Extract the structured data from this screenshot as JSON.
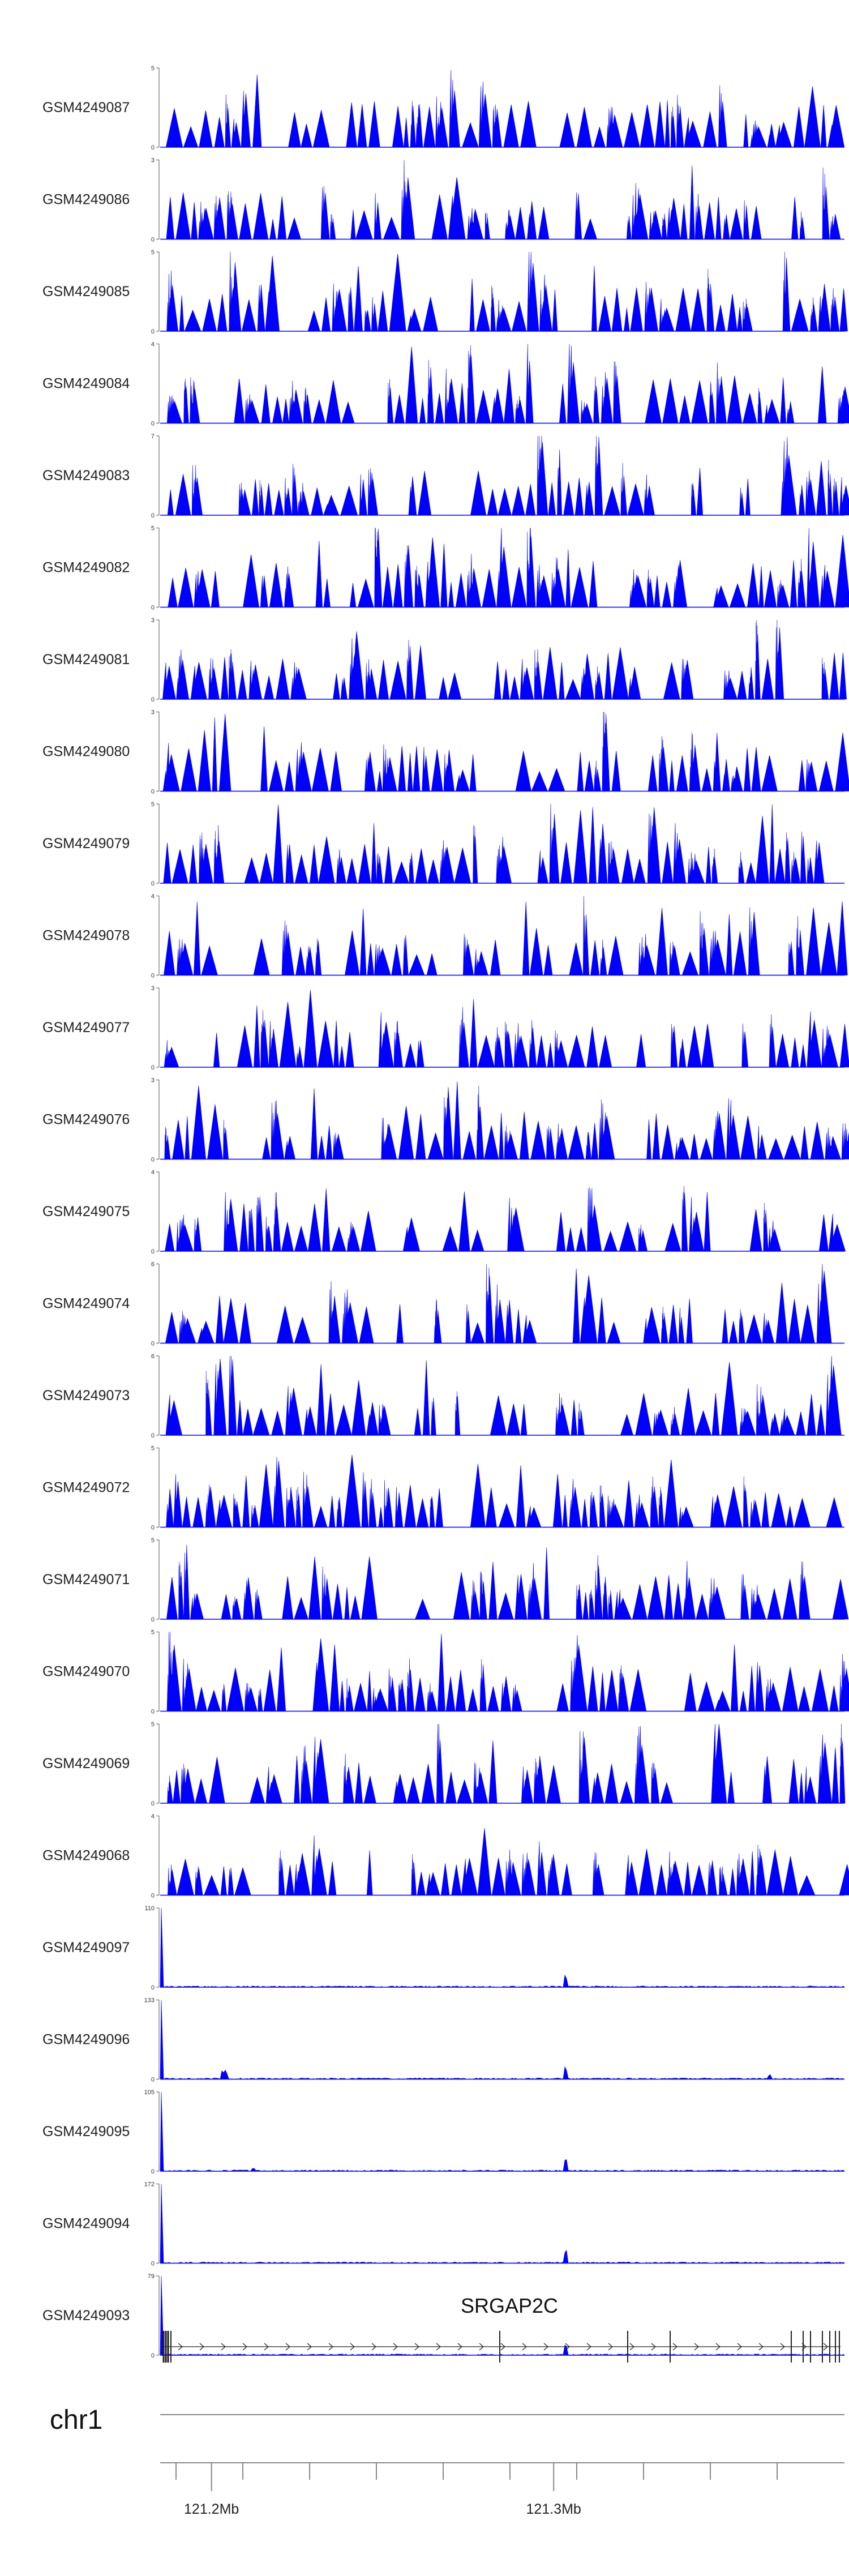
{
  "colors": {
    "signal": "#0000ff",
    "axis": "#555555",
    "gene": "#222222",
    "ideogram": "#888888"
  },
  "chart_data": {
    "type": "area",
    "description_of_layout": "",
    "tracks": [
      {
        "name": "GSM4249087",
        "ymax": 5,
        "ymin": 0
      },
      {
        "name": "GSM4249086",
        "ymax": 3,
        "ymin": 0
      },
      {
        "name": "GSM4249085",
        "ymax": 5,
        "ymin": 0
      },
      {
        "name": "GSM4249084",
        "ymax": 4,
        "ymin": 0
      },
      {
        "name": "GSM4249083",
        "ymax": 7,
        "ymin": 0
      },
      {
        "name": "GSM4249082",
        "ymax": 5,
        "ymin": 0
      },
      {
        "name": "GSM4249081",
        "ymax": 3,
        "ymin": 0
      },
      {
        "name": "GSM4249080",
        "ymax": 3,
        "ymin": 0
      },
      {
        "name": "GSM4249079",
        "ymax": 5,
        "ymin": 0
      },
      {
        "name": "GSM4249078",
        "ymax": 4,
        "ymin": 0
      },
      {
        "name": "GSM4249077",
        "ymax": 3,
        "ymin": 0
      },
      {
        "name": "GSM4249076",
        "ymax": 3,
        "ymin": 0
      },
      {
        "name": "GSM4249075",
        "ymax": 4,
        "ymin": 0
      },
      {
        "name": "GSM4249074",
        "ymax": 6,
        "ymin": 0
      },
      {
        "name": "GSM4249073",
        "ymax": 6,
        "ymin": 0
      },
      {
        "name": "GSM4249072",
        "ymax": 5,
        "ymin": 0
      },
      {
        "name": "GSM4249071",
        "ymax": 5,
        "ymin": 0
      },
      {
        "name": "GSM4249070",
        "ymax": 5,
        "ymin": 0
      },
      {
        "name": "GSM4249069",
        "ymax": 5,
        "ymin": 0
      },
      {
        "name": "GSM4249068",
        "ymax": 4,
        "ymin": 0
      },
      {
        "name": "GSM4249097",
        "ymax": 110,
        "ymin": 0
      },
      {
        "name": "GSM4249096",
        "ymax": 133,
        "ymin": 0
      },
      {
        "name": "GSM4249095",
        "ymax": 105,
        "ymin": 0
      },
      {
        "name": "GSM4249094",
        "ymax": 172,
        "ymin": 0
      },
      {
        "name": "GSM4249093",
        "ymax": 79,
        "ymin": 0
      }
    ],
    "gene": {
      "name": "SRGAP2C",
      "strand": "+"
    },
    "chromosome": "chr1",
    "x_ticks": [
      {
        "label": "121.2Mb",
        "pos": 121.2
      },
      {
        "label": "121.3Mb",
        "pos": 121.3
      }
    ],
    "xlim": [
      121.185,
      121.385
    ]
  }
}
